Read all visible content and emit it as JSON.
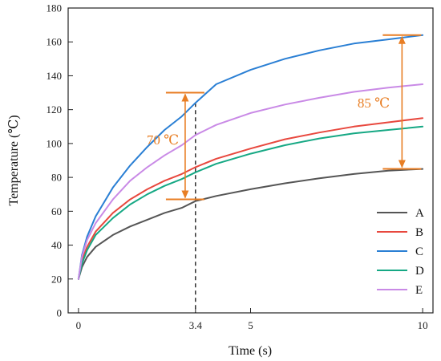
{
  "chart_data": {
    "type": "line",
    "title": "",
    "xlabel": "Time (s)",
    "ylabel": "Temperature (℃)",
    "xlim": [
      -0.3,
      10.3
    ],
    "ylim": [
      0,
      180
    ],
    "xticks": [
      0,
      3.4,
      5,
      10
    ],
    "xtick_labels": [
      "0",
      "3.4",
      "5",
      "10"
    ],
    "yticks": [
      0,
      20,
      40,
      60,
      80,
      100,
      120,
      140,
      160,
      180
    ],
    "ytick_labels": [
      "0",
      "20",
      "40",
      "60",
      "80",
      "100",
      "120",
      "140",
      "160",
      "180"
    ],
    "grid": false,
    "legend_position": "bottom-right",
    "x": [
      0,
      0.1,
      0.25,
      0.5,
      1,
      1.5,
      2,
      2.5,
      3,
      3.4,
      4,
      5,
      6,
      7,
      8,
      9,
      10
    ],
    "series": [
      {
        "name": "A",
        "color": "#555555",
        "values": [
          20,
          27,
          33,
          39,
          46,
          51,
          55,
          59,
          62,
          66,
          69,
          73,
          76.5,
          79.5,
          82,
          84,
          85
        ]
      },
      {
        "name": "B",
        "color": "#e8483e",
        "values": [
          20,
          31,
          39,
          48,
          59,
          67,
          73,
          78,
          82,
          86,
          91,
          97,
          102.5,
          106.5,
          110,
          112.5,
          115
        ]
      },
      {
        "name": "C",
        "color": "#2a7fd4",
        "values": [
          20,
          34,
          45,
          57,
          74,
          87,
          98,
          108,
          116,
          124,
          135,
          143.5,
          150,
          155,
          159,
          161.5,
          164
        ]
      },
      {
        "name": "D",
        "color": "#16a884",
        "values": [
          20,
          29,
          37,
          46,
          56,
          64,
          70,
          75,
          79,
          83,
          88,
          94,
          99,
          103,
          106,
          108,
          110
        ]
      },
      {
        "name": "E",
        "color": "#c98ae6",
        "values": [
          20,
          33,
          43,
          53,
          67,
          78,
          86,
          93,
          99,
          105,
          111,
          118,
          123,
          127,
          130.5,
          133,
          135
        ]
      }
    ],
    "annotations": {
      "marker_x": 3.4,
      "range_left": {
        "label": "70 ℃",
        "color": "#e87e24",
        "x": 3.1,
        "y_bottom": 67,
        "y_top": 130
      },
      "range_right": {
        "label": "85 ℃",
        "color": "#e87e24",
        "x": 9.4,
        "y_bottom": 85,
        "y_top": 164
      }
    }
  }
}
